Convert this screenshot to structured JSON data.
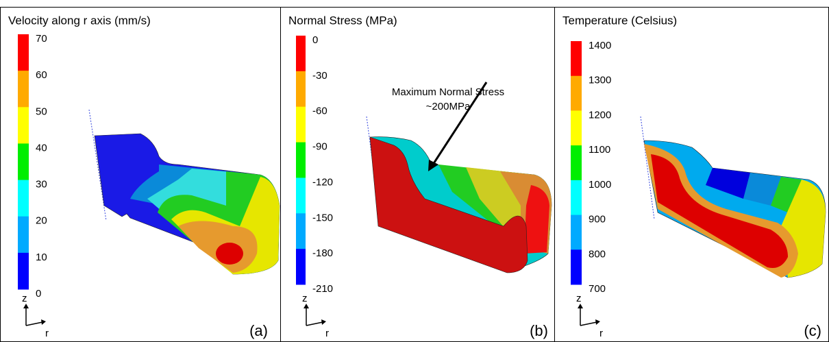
{
  "panels": [
    {
      "title": "Velocity along r axis (mm/s)",
      "ticks": [
        70,
        60,
        50,
        40,
        30,
        20,
        10,
        0
      ],
      "colors": [
        "#ff0000",
        "#ffaa00",
        "#ffff00",
        "#00ee00",
        "#00ffff",
        "#00aaff",
        "#0000ff"
      ],
      "axis_z": "z",
      "axis_r": "r",
      "label": "(a)"
    },
    {
      "title": "Normal Stress (MPa)",
      "ticks": [
        0,
        -30,
        -60,
        -90,
        -120,
        -150,
        -180,
        -210
      ],
      "colors": [
        "#ff0000",
        "#ffaa00",
        "#ffff00",
        "#00ee00",
        "#00ffff",
        "#00aaff",
        "#0000ff"
      ],
      "axis_z": "z",
      "axis_r": "r",
      "label": "(b)",
      "annotation": [
        "Maximum Normal Stress",
        "~200MPa"
      ]
    },
    {
      "title": "Temperature (Celsius)",
      "ticks": [
        1400,
        1300,
        1200,
        1100,
        1000,
        900,
        800,
        700
      ],
      "colors": [
        "#ff0000",
        "#ffaa00",
        "#ffff00",
        "#00ee00",
        "#00ffff",
        "#00aaff",
        "#0000ff"
      ],
      "axis_z": "z",
      "axis_r": "r",
      "label": "(c)"
    }
  ]
}
